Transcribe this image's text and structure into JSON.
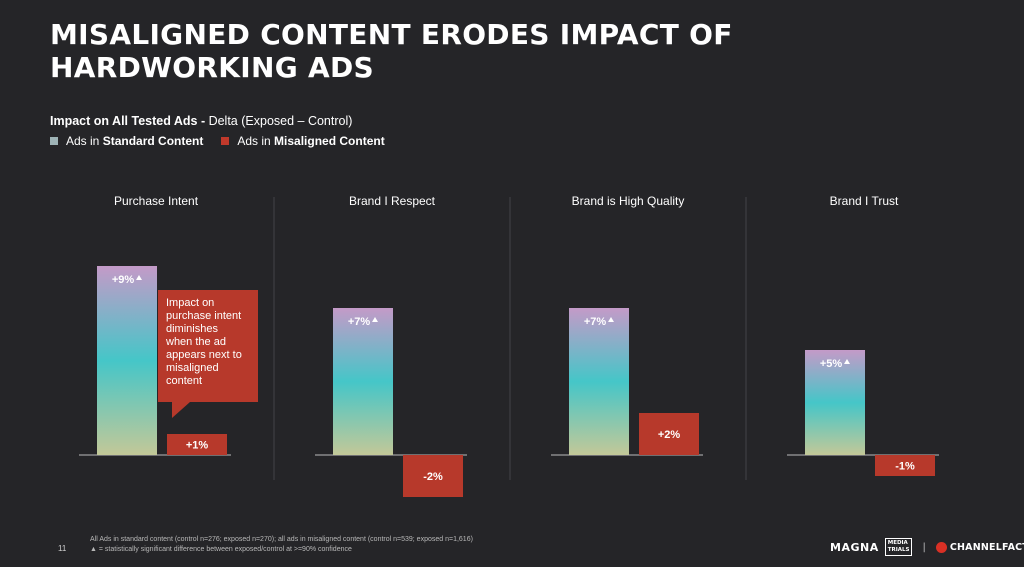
{
  "header": {
    "title": "MISALIGNED CONTENT ERODES IMPACT OF HARDWORKING ADS",
    "subtitle_bold": "Impact on All Tested Ads -",
    "subtitle_rest": " Delta (Exposed – Control)"
  },
  "legend": {
    "prefix": "Ads in ",
    "standard": "Standard Content",
    "misaligned": "Misaligned Content"
  },
  "colors": {
    "standard_top": "#c49ac8",
    "standard_mid": "#45c6c8",
    "standard_bottom": "#c3c898",
    "misaligned": "#b7392b",
    "callout": "#b7392b",
    "axis": "#8a8a8a",
    "divider": "#444448"
  },
  "chart_data": {
    "type": "bar",
    "categories": [
      "Purchase Intent",
      "Brand I Respect",
      "Brand is High Quality",
      "Brand I Trust"
    ],
    "series": [
      {
        "name": "Ads in Standard Content",
        "values": [
          9,
          7,
          7,
          5
        ],
        "labels": [
          "+9%",
          "+7%",
          "+7%",
          "+5%"
        ],
        "significant": [
          true,
          true,
          true,
          true
        ]
      },
      {
        "name": "Ads in Misaligned Content",
        "values": [
          1,
          -2,
          2,
          -1
        ],
        "labels": [
          "+1%",
          "-2%",
          "+2%",
          "-1%"
        ],
        "significant": [
          false,
          false,
          false,
          false
        ]
      }
    ],
    "ylim": [
      -2,
      9
    ]
  },
  "callout": {
    "lines": [
      "Impact on",
      "purchase intent",
      "diminishes",
      "when the ad",
      "appears next to",
      "misaligned",
      "content"
    ]
  },
  "footer": {
    "page_number": "11",
    "note_1": "All Ads in standard content (control n=276; exposed n=270); all ads in misaligned content (control n=539; exposed n=1,616)",
    "note_2": "▲ = statistically significant difference between exposed/control at >=90% confidence",
    "logo_magna": "MAGNA",
    "logo_media_trials": "MEDIA TRIALS",
    "logo_separator": "|",
    "logo_channel_factory": "CHANNELFACTORY"
  }
}
